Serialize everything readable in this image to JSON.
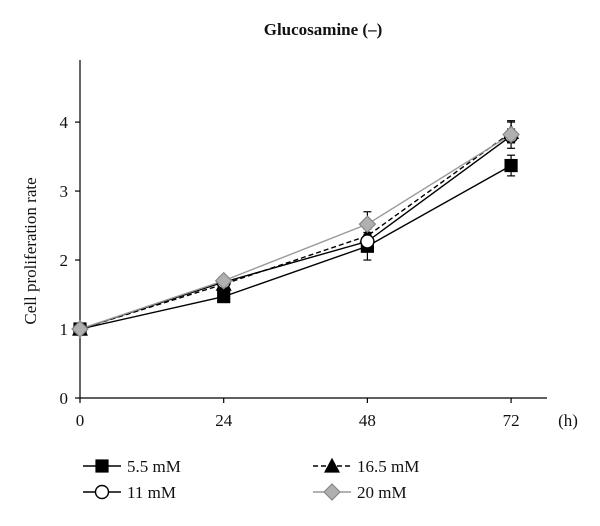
{
  "chart_data": {
    "type": "line",
    "title": "Glucosamine (–)",
    "xlabel": "(h)",
    "ylabel": "Cell proliferation rate",
    "x": [
      0,
      24,
      48,
      72
    ],
    "xticks": [
      "0",
      "24",
      "48",
      "72"
    ],
    "yticks": [
      "0",
      "1",
      "2",
      "3",
      "4"
    ],
    "xlim": [
      0,
      78
    ],
    "ylim": [
      0,
      4.9
    ],
    "grid": false,
    "legend_position": "bottom",
    "series": [
      {
        "name": "5.5 mM",
        "values": [
          1.0,
          1.47,
          2.2,
          3.37
        ],
        "err": [
          0,
          0.04,
          0.2,
          0.15
        ],
        "marker": "square",
        "line": "solid",
        "color": "#000000",
        "fill": "#000000"
      },
      {
        "name": "16.5 mM",
        "values": [
          1.0,
          1.65,
          2.35,
          3.85
        ],
        "err": [
          0,
          0.04,
          0.1,
          0.15
        ],
        "marker": "triangle",
        "line": "dashed",
        "color": "#000000",
        "fill": "#000000"
      },
      {
        "name": "11 mM",
        "values": [
          1.0,
          1.68,
          2.27,
          3.8
        ],
        "err": [
          0,
          0.04,
          0.1,
          0.1
        ],
        "marker": "circle",
        "line": "solid",
        "color": "#000000",
        "fill": "#ffffff"
      },
      {
        "name": "20 mM",
        "values": [
          1.0,
          1.7,
          2.52,
          3.82
        ],
        "err": [
          0,
          0.04,
          0.18,
          0.2
        ],
        "marker": "diamond",
        "line": "solid",
        "color": "#888888",
        "fill": "#b0b0b0"
      }
    ],
    "legend_order": [
      0,
      1,
      2,
      3
    ]
  }
}
